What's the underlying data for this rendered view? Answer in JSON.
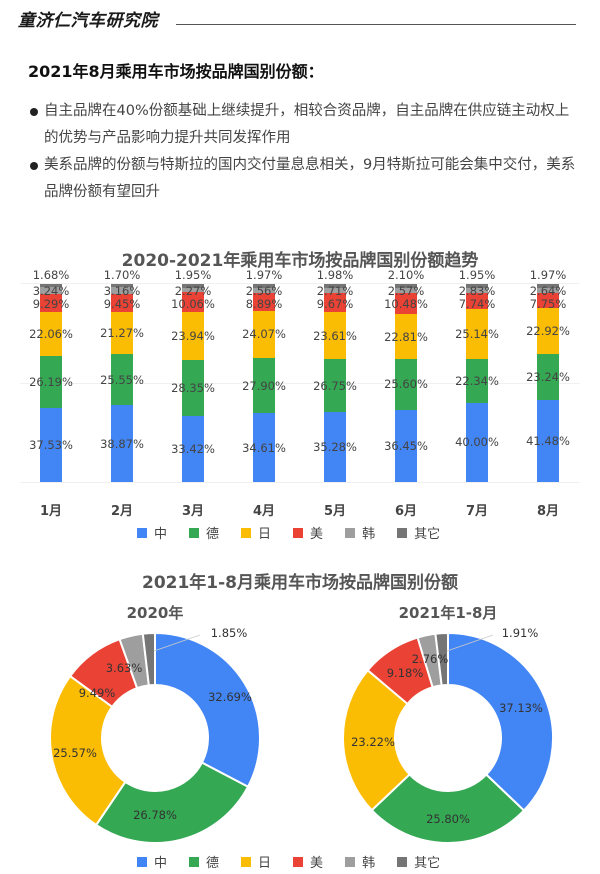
{
  "header": {
    "brand": "童济仁汽车研究院"
  },
  "section": {
    "title": "2021年8月乘用车市场按品牌国别份额：",
    "bullets": [
      "自主品牌在40%份额基础上继续提升，相较合资品牌，自主品牌在供应链主动权上的优势与产品影响力提升共同发挥作用",
      "美系品牌的份额与特斯拉的国内交付量息息相关，9月特斯拉可能会集中交付，美系品牌份额有望回升"
    ]
  },
  "colors": {
    "中": "#4285F4",
    "德": "#34A853",
    "日": "#FBBC04",
    "美": "#EA4335",
    "韩": "#9E9E9E",
    "其它": "#757575"
  },
  "legend": [
    "中",
    "德",
    "日",
    "美",
    "韩",
    "其它"
  ],
  "chart_data": [
    {
      "type": "bar",
      "stacked": true,
      "normalized": true,
      "title": "2020-2021年乘用车市场按品牌国别份额趋势",
      "categories": [
        "1月",
        "2月",
        "3月",
        "4月",
        "5月",
        "6月",
        "7月",
        "8月"
      ],
      "series": [
        {
          "name": "中",
          "values": [
            37.53,
            38.87,
            33.42,
            34.61,
            35.28,
            36.45,
            40.0,
            41.48
          ]
        },
        {
          "name": "德",
          "values": [
            26.19,
            25.55,
            28.35,
            27.9,
            26.75,
            25.6,
            22.34,
            23.24
          ]
        },
        {
          "name": "日",
          "values": [
            22.06,
            21.27,
            23.94,
            24.07,
            23.61,
            22.81,
            25.14,
            22.92
          ]
        },
        {
          "name": "美",
          "values": [
            9.29,
            9.45,
            10.06,
            8.89,
            9.67,
            10.48,
            7.74,
            7.75
          ]
        },
        {
          "name": "韩",
          "values": [
            3.24,
            3.16,
            2.27,
            2.56,
            2.71,
            2.57,
            2.83,
            2.64
          ]
        },
        {
          "name": "其它",
          "values": [
            1.68,
            1.7,
            1.95,
            1.97,
            1.98,
            2.1,
            1.95,
            1.97
          ]
        }
      ],
      "value_format": "percent_2dp",
      "ylim": [
        0,
        100
      ],
      "xlabel": "",
      "ylabel": "",
      "grid": true,
      "legend_position": "bottom"
    },
    {
      "type": "pie",
      "donut": true,
      "title": "2021年1-8月乘用车市场按品牌国别份额",
      "subtitle": "2020年",
      "categories": [
        "中",
        "德",
        "日",
        "美",
        "韩",
        "其它"
      ],
      "values": [
        32.69,
        26.78,
        25.57,
        9.49,
        3.63,
        1.85
      ],
      "labels": [
        "32.69%",
        "26.78%",
        "25.57%",
        "9.49%",
        "3.63%",
        "1.85%"
      ],
      "legend_position": "bottom"
    },
    {
      "type": "pie",
      "donut": true,
      "title": "2021年1-8月乘用车市场按品牌国别份额",
      "subtitle": "2021年1-8月",
      "categories": [
        "中",
        "德",
        "日",
        "美",
        "韩",
        "其它"
      ],
      "values": [
        37.13,
        25.8,
        23.22,
        9.18,
        2.76,
        1.91
      ],
      "labels": [
        "37.13%",
        "25.80%",
        "23.22%",
        "9.18%",
        "2.76%",
        "1.91%"
      ],
      "legend_position": "bottom"
    }
  ],
  "charts": {
    "trend_title": "2020-2021年乘用车市场按品牌国别份额趋势",
    "share_title": "2021年1-8月乘用车市场按品牌国别份额",
    "donut_left_subtitle": "2020年",
    "donut_right_subtitle": "2021年1-8月"
  }
}
